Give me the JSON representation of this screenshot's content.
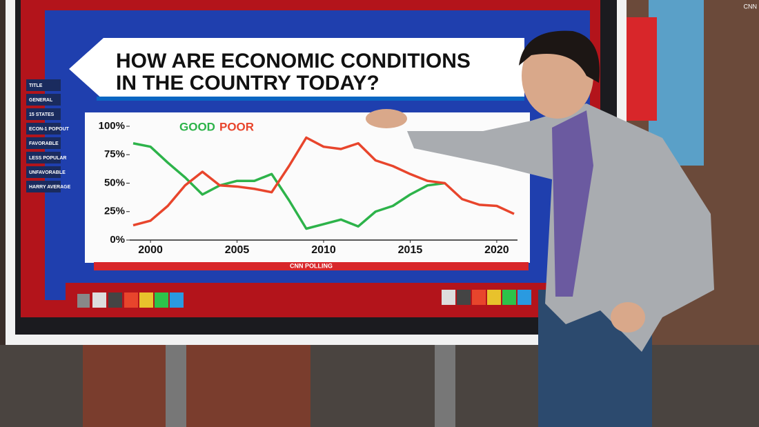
{
  "chart_data": {
    "type": "line",
    "title": [
      "HOW ARE ECONOMIC CONDITIONS",
      "IN THE COUNTRY TODAY?"
    ],
    "x": [
      1999,
      2000,
      2001,
      2002,
      2003,
      2004,
      2005,
      2006,
      2007,
      2008,
      2009,
      2010,
      2011,
      2012,
      2013,
      2014,
      2015,
      2016,
      2017,
      2018,
      2019,
      2020,
      2021
    ],
    "series": [
      {
        "name": "GOOD",
        "color": "#2db34a",
        "values": [
          85,
          82,
          68,
          55,
          40,
          48,
          52,
          52,
          58,
          35,
          10,
          14,
          18,
          12,
          25,
          30,
          40,
          48,
          50,
          null,
          null,
          null,
          null
        ]
      },
      {
        "name": "POOR",
        "color": "#e8452c",
        "values": [
          13,
          17,
          30,
          48,
          60,
          48,
          47,
          45,
          42,
          65,
          90,
          82,
          80,
          85,
          70,
          65,
          58,
          52,
          50,
          36,
          31,
          30,
          23
        ]
      }
    ],
    "xlim": [
      1999,
      2021
    ],
    "xticks": [
      2000,
      2005,
      2010,
      2015,
      2020
    ],
    "ylim": [
      0,
      100
    ],
    "yticks": [
      {
        "value": 0,
        "label": "0%"
      },
      {
        "value": 25,
        "label": "25%"
      },
      {
        "value": 50,
        "label": "50%"
      },
      {
        "value": 75,
        "label": "75%"
      },
      {
        "value": 100,
        "label": "100%"
      }
    ],
    "source": "CNN POLLING"
  },
  "sidebar": [
    "TITLE",
    "GENERAL",
    "15 STATES",
    "ECON-1 POPOUT",
    "FAVORABLE",
    "LESS POPULAR",
    "UNFAVORABLE",
    "HARRY AVERAGE"
  ],
  "network_bug": "CNN"
}
